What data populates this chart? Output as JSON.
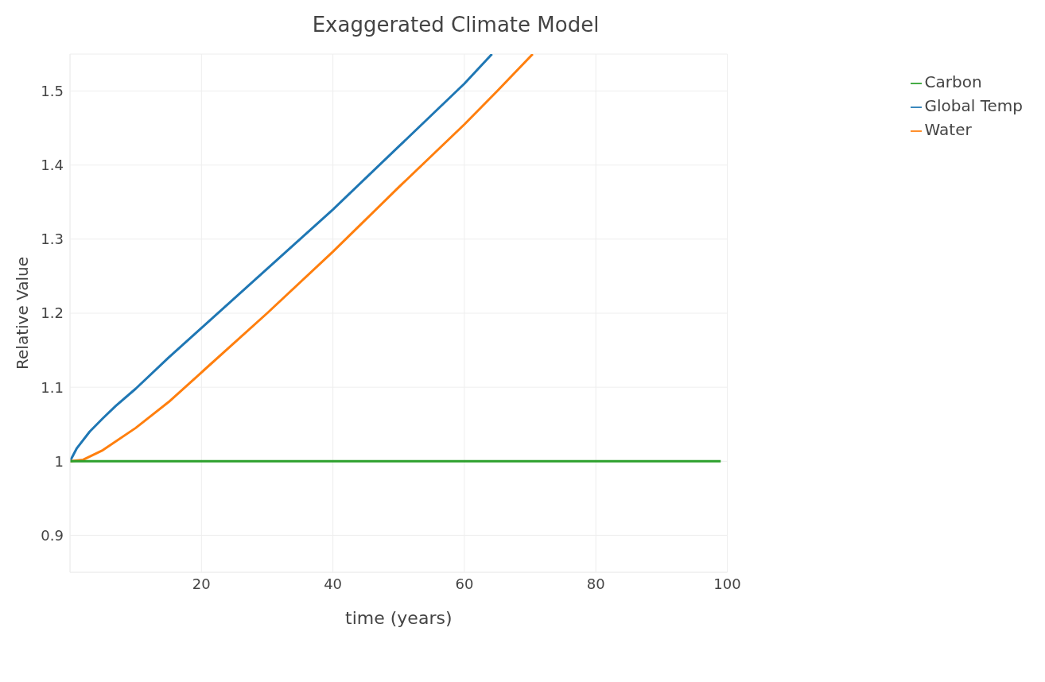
{
  "chart_data": {
    "type": "line",
    "title": "Exaggerated Climate Model",
    "xlabel": "time (years)",
    "ylabel": "Relative Value",
    "series": [
      {
        "name": "Global Temp",
        "color": "#1f77b4",
        "x": [
          0,
          1,
          3,
          5,
          7,
          10,
          15,
          20,
          30,
          40,
          50,
          60,
          64.2
        ],
        "values": [
          1.0,
          1.017,
          1.04,
          1.058,
          1.075,
          1.098,
          1.14,
          1.18,
          1.26,
          1.34,
          1.425,
          1.51,
          1.55
        ]
      },
      {
        "name": "Water",
        "color": "#ff7f0e",
        "x": [
          0,
          2,
          5,
          10,
          15,
          20,
          30,
          40,
          50,
          60,
          65,
          70.4
        ],
        "values": [
          1.0,
          1.002,
          1.015,
          1.045,
          1.08,
          1.12,
          1.2,
          1.283,
          1.37,
          1.455,
          1.5,
          1.55
        ]
      },
      {
        "name": "Carbon",
        "color": "#2ca02c",
        "x": [
          0,
          99
        ],
        "values": [
          1.0,
          1.0
        ]
      }
    ],
    "xlim": [
      0,
      100
    ],
    "xticks": [
      20,
      40,
      60,
      80,
      100
    ],
    "ylim": [
      0.85,
      1.55
    ],
    "yticks": [
      0.9,
      1,
      1.1,
      1.2,
      1.3,
      1.4,
      1.5
    ],
    "grid": true,
    "legend": "top right",
    "marker": "none",
    "line_style": "solid"
  }
}
